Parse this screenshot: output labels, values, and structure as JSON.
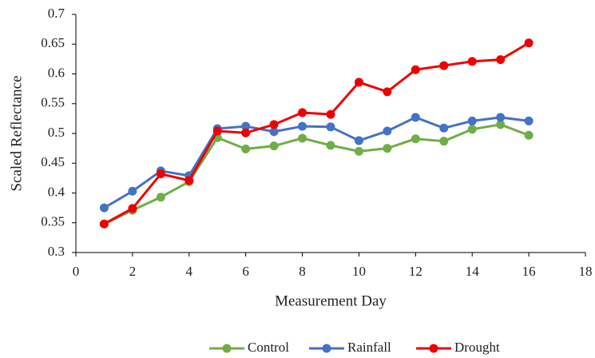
{
  "chart_data": {
    "type": "line",
    "x_label": "Measurement Day",
    "y_label": "Scaled Reflectance",
    "x": [
      1,
      2,
      3,
      4,
      5,
      6,
      7,
      8,
      9,
      10,
      11,
      12,
      13,
      14,
      15,
      16
    ],
    "series": [
      {
        "name": "Control",
        "color": "#70ad47",
        "values": [
          0.348,
          0.371,
          0.393,
          0.419,
          0.493,
          0.474,
          0.479,
          0.492,
          0.48,
          0.47,
          0.475,
          0.491,
          0.487,
          0.507,
          0.515,
          0.497
        ]
      },
      {
        "name": "Rainfall",
        "color": "#4472c4",
        "values": [
          0.375,
          0.403,
          0.437,
          0.429,
          0.508,
          0.512,
          0.503,
          0.512,
          0.511,
          0.488,
          0.504,
          0.527,
          0.509,
          0.521,
          0.527,
          0.521
        ]
      },
      {
        "name": "Drought",
        "color": "#ee0000",
        "values": [
          0.348,
          0.374,
          0.432,
          0.421,
          0.504,
          0.501,
          0.515,
          0.535,
          0.532,
          0.586,
          0.57,
          0.607,
          0.614,
          0.621,
          0.624,
          0.652
        ]
      }
    ],
    "xlim": [
      0,
      18
    ],
    "xticks": [
      0,
      2,
      4,
      6,
      8,
      10,
      12,
      14,
      16,
      18
    ],
    "ylim": [
      0.3,
      0.7
    ],
    "yticks": [
      0.3,
      0.35,
      0.4,
      0.45,
      0.5,
      0.55,
      0.6,
      0.65,
      0.7
    ],
    "grid": false,
    "legend": "bottom"
  }
}
